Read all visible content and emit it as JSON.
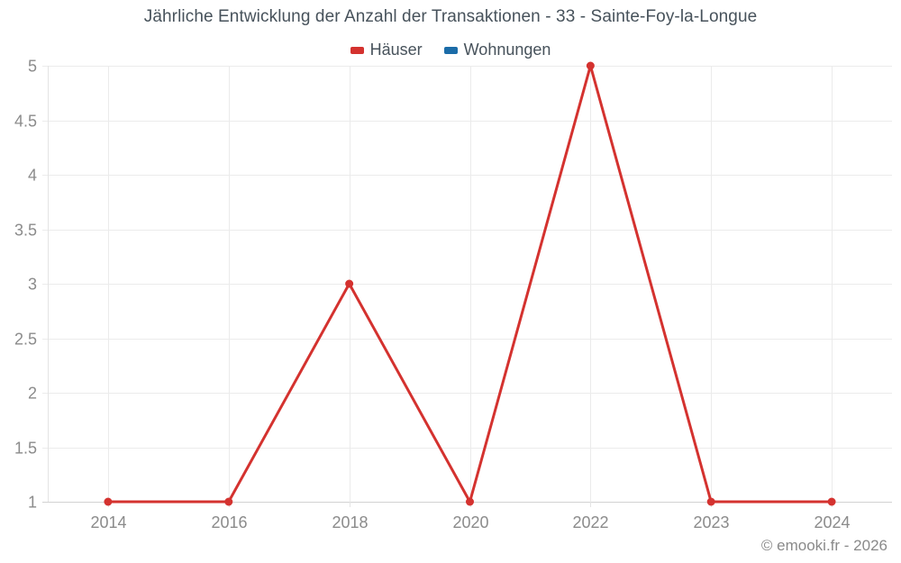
{
  "title": "Jährliche Entwicklung der Anzahl der Transaktionen - 33 - Sainte-Foy-la-Longue",
  "legend": {
    "items": [
      {
        "label": "Häuser",
        "color": "#d4322f"
      },
      {
        "label": "Wohnungen",
        "color": "#1b6ca8"
      }
    ]
  },
  "watermark": "© emooki.fr - 2026",
  "colors": {
    "series_red": "#d4322f",
    "series_blue": "#1b6ca8",
    "title_text": "#47525b",
    "axis_label_text": "#8b8b8b",
    "gridline": "#ebebeb",
    "axis_line": "#e4e4e4",
    "baseline": "#d2d2d2",
    "background": "#ffffff"
  },
  "chart_data": {
    "type": "line",
    "categories": [
      "2014",
      "2016",
      "2018",
      "2020",
      "2022",
      "2023",
      "2024"
    ],
    "series": [
      {
        "name": "Häuser",
        "color": "#d4322f",
        "values": [
          1,
          1,
          3,
          1,
          5,
          1,
          1
        ]
      },
      {
        "name": "Wohnungen",
        "color": "#1b6ca8",
        "values": []
      }
    ],
    "title": "Jährliche Entwicklung der Anzahl der Transaktionen - 33 - Sainte-Foy-la-Longue",
    "xlabel": "",
    "ylabel": "",
    "ylim": [
      1,
      5
    ],
    "ytick_step": 0.5,
    "yticks": [
      "1",
      "1.5",
      "2",
      "2.5",
      "3",
      "3.5",
      "4",
      "4.5",
      "5"
    ],
    "grid": true,
    "legend_position": "top",
    "marker": "circle",
    "line_width": 3,
    "marker_radius": 4.5
  }
}
